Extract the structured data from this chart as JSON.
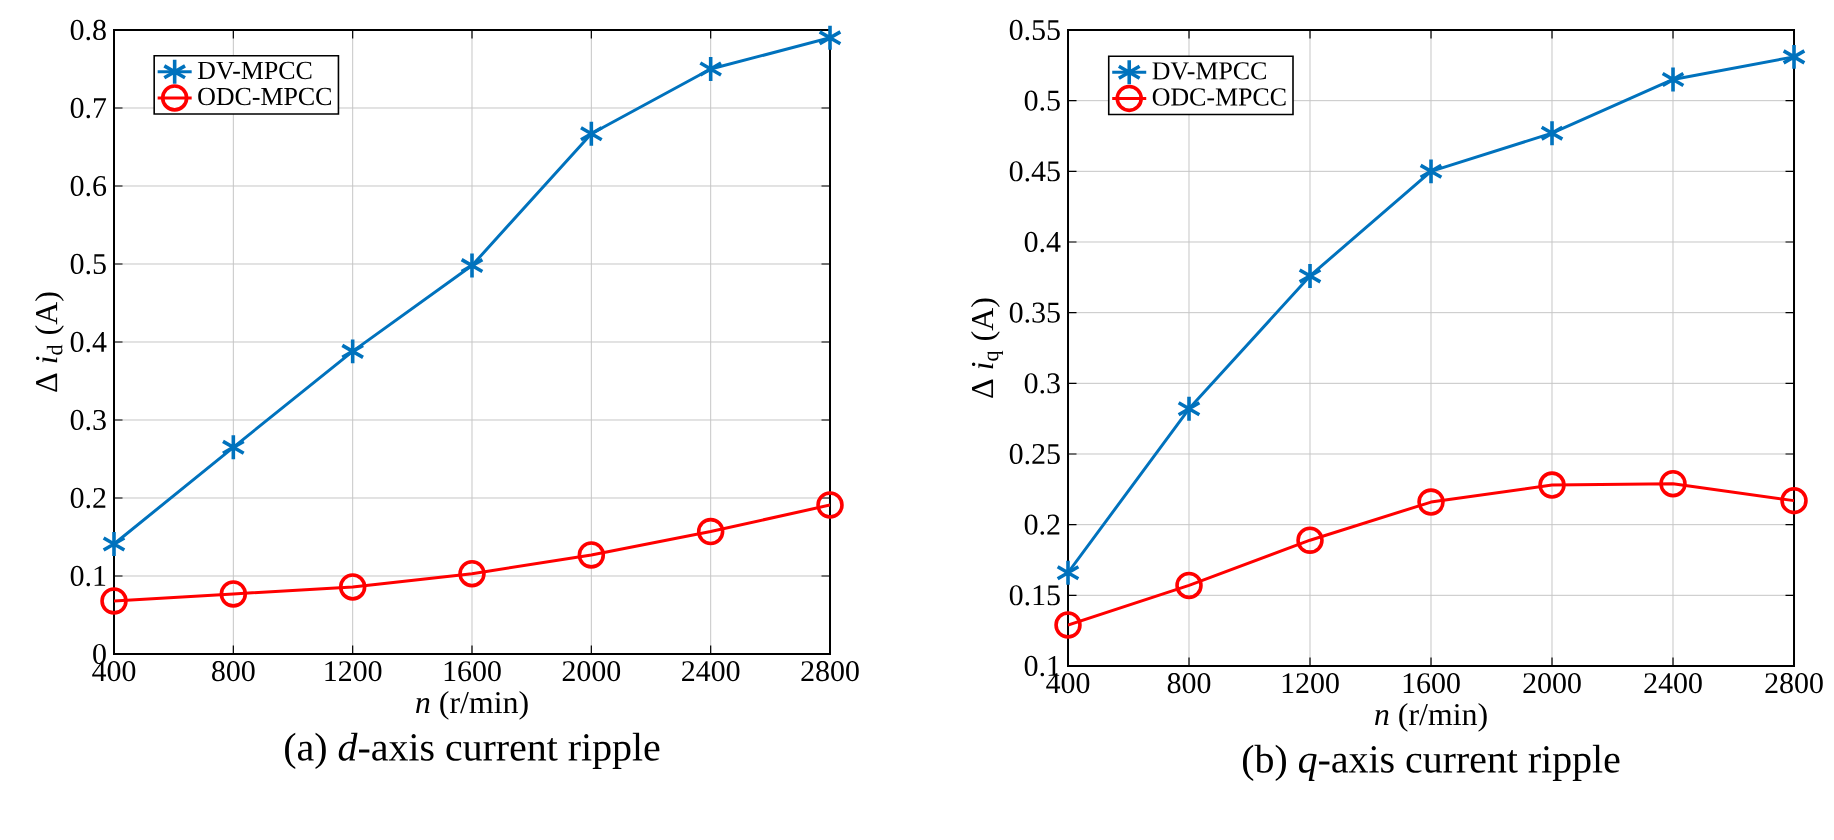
{
  "chart_data": [
    {
      "type": "line",
      "title": "(a) *d*-axis current ripple",
      "xlabel": "*n* (r/min)",
      "ylabel": "Δ *i*$_{d}$ (A)",
      "x": [
        400,
        800,
        1200,
        1600,
        2000,
        2400,
        2800
      ],
      "series": [
        {
          "name": "DV-MPCC",
          "color": "#0072bd",
          "marker": "cross",
          "values": [
            0.141,
            0.265,
            0.388,
            0.498,
            0.667,
            0.75,
            0.79
          ]
        },
        {
          "name": "ODC-MPCC",
          "color": "#ff0000",
          "marker": "circle",
          "values": [
            0.068,
            0.077,
            0.086,
            0.103,
            0.127,
            0.157,
            0.191
          ]
        }
      ],
      "xlim": [
        400,
        2800
      ],
      "xticks": [
        400,
        800,
        1200,
        1600,
        2000,
        2400,
        2800
      ],
      "ylim": [
        0,
        0.8
      ],
      "yticks": [
        0,
        0.1,
        0.2,
        0.3,
        0.4,
        0.5,
        0.6,
        0.7,
        0.8
      ],
      "grid": true,
      "legend": "top left",
      "line_style": "solid"
    },
    {
      "type": "line",
      "title": "(b) *q*-axis current ripple",
      "xlabel": "*n* (r/min)",
      "ylabel": "Δ *i*$_{q}$ (A)",
      "x": [
        400,
        800,
        1200,
        1600,
        2000,
        2400,
        2800
      ],
      "series": [
        {
          "name": "DV-MPCC",
          "color": "#0072bd",
          "marker": "cross",
          "values": [
            0.166,
            0.282,
            0.376,
            0.45,
            0.477,
            0.515,
            0.531
          ]
        },
        {
          "name": "ODC-MPCC",
          "color": "#ff0000",
          "marker": "circle",
          "values": [
            0.129,
            0.157,
            0.189,
            0.216,
            0.228,
            0.229,
            0.217
          ]
        }
      ],
      "xlim": [
        400,
        2800
      ],
      "xticks": [
        400,
        800,
        1200,
        1600,
        2000,
        2400,
        2800
      ],
      "ylim": [
        0.1,
        0.55
      ],
      "yticks": [
        0.1,
        0.15,
        0.2,
        0.25,
        0.3,
        0.35,
        0.4,
        0.45,
        0.5,
        0.55
      ],
      "grid": true,
      "legend": "top left",
      "line_style": "solid"
    }
  ]
}
